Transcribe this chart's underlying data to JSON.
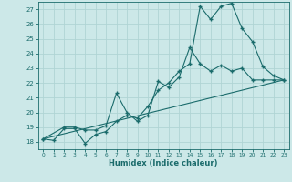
{
  "xlabel": "Humidex (Indice chaleur)",
  "xlim": [
    -0.5,
    23.5
  ],
  "ylim": [
    17.5,
    27.5
  ],
  "xticks": [
    0,
    1,
    2,
    3,
    4,
    5,
    6,
    7,
    8,
    9,
    10,
    11,
    12,
    13,
    14,
    15,
    16,
    17,
    18,
    19,
    20,
    21,
    22,
    23
  ],
  "yticks": [
    18,
    19,
    20,
    21,
    22,
    23,
    24,
    25,
    26,
    27
  ],
  "background_color": "#cce8e8",
  "grid_color": "#b0d4d4",
  "line_color": "#1a6b6b",
  "line1_x": [
    0,
    1,
    2,
    3,
    4,
    5,
    6,
    7,
    8,
    9,
    10,
    11,
    12,
    13,
    14,
    15,
    16,
    17,
    18,
    19,
    20,
    21,
    22,
    23
  ],
  "line1_y": [
    18.2,
    18.1,
    18.9,
    18.9,
    17.9,
    18.5,
    18.7,
    19.4,
    19.8,
    19.6,
    20.4,
    21.5,
    22.0,
    22.8,
    23.3,
    27.2,
    26.3,
    27.2,
    27.4,
    25.7,
    24.8,
    23.1,
    22.5,
    22.2
  ],
  "line2_x": [
    0,
    2,
    3,
    4,
    5,
    6,
    7,
    8,
    9,
    10,
    11,
    12,
    13,
    14,
    15,
    16,
    17,
    18,
    19,
    20,
    21,
    22,
    23
  ],
  "line2_y": [
    18.2,
    19.0,
    19.0,
    18.8,
    18.8,
    19.1,
    21.3,
    20.0,
    19.4,
    19.8,
    22.1,
    21.7,
    22.4,
    24.4,
    23.3,
    22.8,
    23.2,
    22.8,
    23.0,
    22.2,
    22.2,
    22.2,
    22.2
  ],
  "line3_x": [
    0,
    23
  ],
  "line3_y": [
    18.2,
    22.2
  ]
}
